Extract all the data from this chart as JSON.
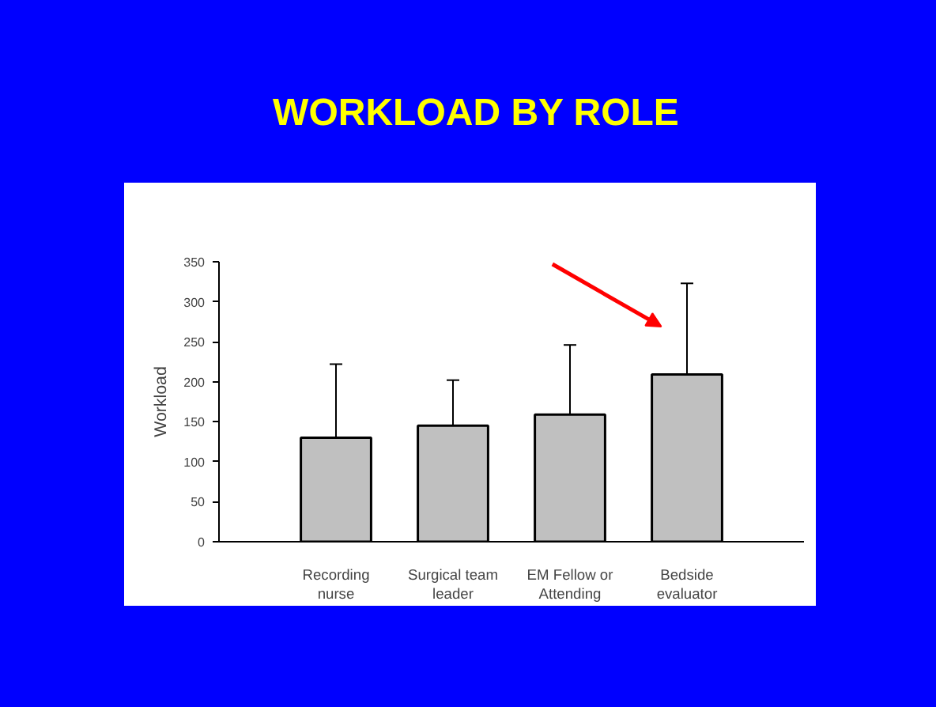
{
  "chart_data": {
    "type": "bar",
    "title": "WORKLOAD BY ROLE",
    "ylabel": "Workload",
    "categories": [
      "Recording nurse",
      "Surgical team leader",
      "EM Fellow or Attending",
      "Bedside evaluator"
    ],
    "values": [
      130,
      145,
      159,
      209
    ],
    "errors": [
      [
        130,
        222
      ],
      [
        145,
        202
      ],
      [
        159,
        246
      ],
      [
        209,
        323
      ]
    ],
    "color": "#c0c0c0",
    "ylim": [
      0,
      350
    ],
    "yticks": [
      0,
      50,
      100,
      150,
      200,
      250,
      300,
      350
    ],
    "grid": false
  }
}
